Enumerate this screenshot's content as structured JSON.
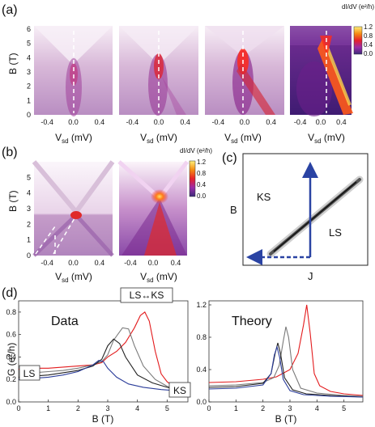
{
  "panels": {
    "a": "(a)",
    "b": "(b)",
    "c": "(c)",
    "d": "(d)"
  },
  "colorbar_a": {
    "title": "dI/dV (e²/h)",
    "ticks": [
      "1.2",
      "0.8",
      "0.4",
      "0.0"
    ]
  },
  "colorbar_b": {
    "title": "dI/dV (e²/h)",
    "ticks": [
      "1.2",
      "0.8",
      "0.4",
      "0.0"
    ]
  },
  "axes": {
    "vsd_label": "V",
    "vsd_sub": "sd",
    "vsd_unit": " (mV)",
    "b_label": "B (T)",
    "g_label": "G (e²/h)",
    "j_label": "J",
    "b_plain": "B"
  },
  "panel_c": {
    "ks": "KS",
    "ls": "LS"
  },
  "panel_d": {
    "data_title": "Data",
    "theory_title": "Theory",
    "transition_box": "LS↔KS",
    "ls_box": "LS",
    "ks_box": "KS"
  },
  "colors": {
    "red": "#e31a1c",
    "blue": "#2b3d9a",
    "gray": "#7a7a7a",
    "black": "#222222",
    "arrow": "#2a43a3",
    "dash": "#ffffff"
  },
  "chart_data": [
    {
      "type": "heatmap",
      "panel": "a",
      "xlabel": "Vsd (mV)",
      "ylabel": "B (T)",
      "xlim": [
        -0.6,
        0.6
      ],
      "ylim": [
        0,
        6
      ],
      "xticks": [
        "-0.4",
        "0.0",
        "0.4"
      ],
      "yticks": [
        "0",
        "1",
        "2",
        "3",
        "4",
        "5",
        "6"
      ],
      "colorbar": {
        "title": "dI/dV (e²/h)",
        "range": [
          0,
          1.2
        ]
      },
      "subplots": 4
    },
    {
      "type": "heatmap",
      "panel": "b",
      "xlabel": "Vsd (mV)",
      "ylabel": "B (T)",
      "xlim": [
        -0.6,
        0.6
      ],
      "ylim": [
        0,
        6
      ],
      "xticks": [
        "-0.4",
        "0.0",
        "0.4"
      ],
      "yticks": [
        "0",
        "1",
        "2",
        "3",
        "4",
        "5"
      ],
      "colorbar": {
        "title": "dI/dV (e²/h)",
        "range": [
          0,
          1.2
        ]
      },
      "subplots": 2
    },
    {
      "type": "line",
      "panel": "d-data",
      "title": "Data",
      "xlabel": "B (T)",
      "ylabel": "G (e²/h)",
      "xlim": [
        0,
        5.7
      ],
      "ylim": [
        0,
        0.9
      ],
      "xticks": [
        "0",
        "1",
        "2",
        "3",
        "4",
        "5"
      ],
      "yticks": [
        "0.0",
        "0.2",
        "0.4",
        "0.6",
        "0.8"
      ],
      "series": [
        {
          "color": "red",
          "x": [
            0,
            0.5,
            1,
            1.5,
            2,
            2.5,
            2.8,
            3.0,
            3.3,
            3.6,
            3.9,
            4.1,
            4.25,
            4.4,
            4.6,
            4.8,
            5.0,
            5.3
          ],
          "y": [
            0.29,
            0.3,
            0.3,
            0.31,
            0.32,
            0.33,
            0.35,
            0.4,
            0.45,
            0.53,
            0.66,
            0.77,
            0.8,
            0.72,
            0.45,
            0.25,
            0.18,
            0.12
          ]
        },
        {
          "color": "gray",
          "x": [
            0,
            0.5,
            1,
            1.5,
            2,
            2.5,
            2.8,
            3.0,
            3.2,
            3.5,
            3.7,
            3.9,
            4.2,
            4.6,
            5.0,
            5.3
          ],
          "y": [
            0.26,
            0.26,
            0.27,
            0.28,
            0.3,
            0.33,
            0.36,
            0.42,
            0.55,
            0.66,
            0.65,
            0.5,
            0.32,
            0.2,
            0.14,
            0.11
          ]
        },
        {
          "color": "black",
          "x": [
            0,
            0.5,
            1,
            1.5,
            2,
            2.5,
            2.8,
            3.0,
            3.2,
            3.4,
            3.6,
            4.0,
            4.5,
            5.0,
            5.3
          ],
          "y": [
            0.22,
            0.23,
            0.24,
            0.26,
            0.28,
            0.32,
            0.38,
            0.5,
            0.56,
            0.52,
            0.4,
            0.24,
            0.17,
            0.13,
            0.11
          ]
        },
        {
          "color": "blue",
          "x": [
            0,
            0.5,
            1,
            1.5,
            2,
            2.5,
            2.7,
            2.85,
            3.0,
            3.3,
            3.7,
            4.2,
            4.8,
            5.3
          ],
          "y": [
            0.2,
            0.21,
            0.22,
            0.24,
            0.27,
            0.33,
            0.37,
            0.36,
            0.3,
            0.22,
            0.16,
            0.13,
            0.11,
            0.1
          ]
        }
      ]
    },
    {
      "type": "line",
      "panel": "d-theory",
      "title": "Theory",
      "xlabel": "B (T)",
      "xlim": [
        0,
        5.7
      ],
      "ylim": [
        0,
        1.25
      ],
      "xticks": [
        "0",
        "1",
        "2",
        "3",
        "4",
        "5"
      ],
      "yticks": [
        "0.0",
        "0.4",
        "0.8",
        "1.2"
      ],
      "series": [
        {
          "color": "red",
          "x": [
            0,
            1,
            2,
            2.5,
            3.0,
            3.3,
            3.5,
            3.62,
            3.75,
            3.9,
            4.1,
            4.5,
            5.0,
            5.7
          ],
          "y": [
            0.24,
            0.25,
            0.28,
            0.31,
            0.4,
            0.6,
            0.95,
            1.2,
            0.85,
            0.35,
            0.2,
            0.13,
            0.1,
            0.08
          ]
        },
        {
          "color": "gray",
          "x": [
            0,
            1,
            2,
            2.4,
            2.6,
            2.75,
            2.85,
            2.95,
            3.1,
            3.4,
            4.0,
            5.0,
            5.7
          ],
          "y": [
            0.2,
            0.21,
            0.24,
            0.3,
            0.45,
            0.75,
            0.93,
            0.8,
            0.4,
            0.17,
            0.11,
            0.08,
            0.07
          ]
        },
        {
          "color": "black",
          "x": [
            0,
            1,
            2,
            2.3,
            2.45,
            2.55,
            2.65,
            2.8,
            3.1,
            3.6,
            4.5,
            5.7
          ],
          "y": [
            0.18,
            0.19,
            0.23,
            0.35,
            0.6,
            0.73,
            0.6,
            0.3,
            0.15,
            0.1,
            0.08,
            0.06
          ]
        },
        {
          "color": "blue",
          "x": [
            0,
            1,
            2,
            2.3,
            2.42,
            2.52,
            2.62,
            2.75,
            3.0,
            3.5,
            4.5,
            5.7
          ],
          "y": [
            0.16,
            0.17,
            0.21,
            0.35,
            0.58,
            0.68,
            0.55,
            0.28,
            0.14,
            0.09,
            0.07,
            0.06
          ]
        }
      ]
    }
  ]
}
